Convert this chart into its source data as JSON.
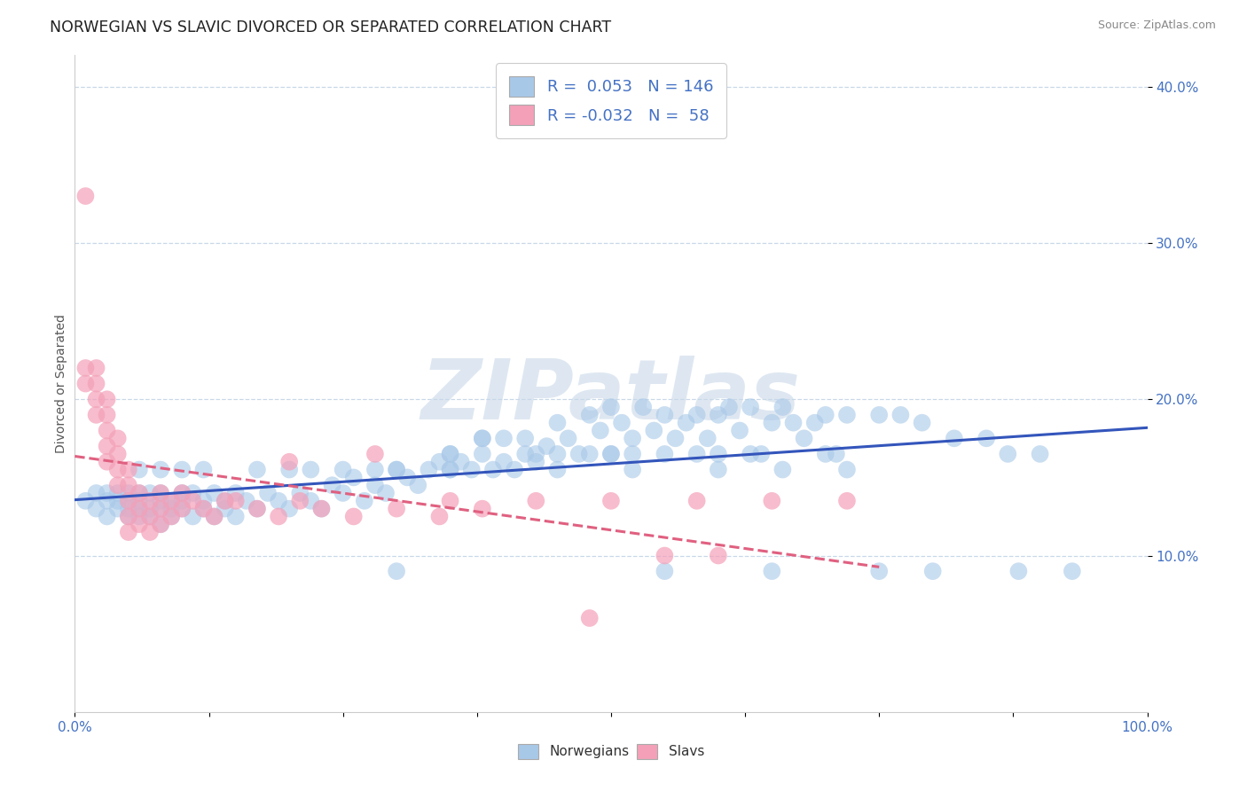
{
  "title": "NORWEGIAN VS SLAVIC DIVORCED OR SEPARATED CORRELATION CHART",
  "source_text": "Source: ZipAtlas.com",
  "ylabel": "Divorced or Separated",
  "xlim": [
    0.0,
    1.0
  ],
  "ylim": [
    0.0,
    0.42
  ],
  "yticks": [
    0.1,
    0.2,
    0.3,
    0.4
  ],
  "ytick_labels": [
    "10.0%",
    "20.0%",
    "30.0%",
    "40.0%"
  ],
  "xtick_labels": [
    "0.0%",
    "100.0%"
  ],
  "watermark": "ZIPatlas",
  "norwegian_color": "#a8c8e8",
  "slav_color": "#f4a0b8",
  "norwegian_line_color": "#3355bb",
  "slav_line_color": "#e06080",
  "background_color": "#ffffff",
  "grid_color": "#c8d8e8",
  "norwegians_x": [
    0.01,
    0.02,
    0.02,
    0.03,
    0.03,
    0.03,
    0.04,
    0.04,
    0.04,
    0.05,
    0.05,
    0.05,
    0.05,
    0.06,
    0.06,
    0.06,
    0.06,
    0.07,
    0.07,
    0.07,
    0.08,
    0.08,
    0.08,
    0.08,
    0.09,
    0.09,
    0.09,
    0.1,
    0.1,
    0.1,
    0.11,
    0.11,
    0.12,
    0.12,
    0.13,
    0.13,
    0.14,
    0.14,
    0.15,
    0.15,
    0.16,
    0.17,
    0.18,
    0.19,
    0.2,
    0.21,
    0.22,
    0.23,
    0.24,
    0.25,
    0.26,
    0.27,
    0.28,
    0.29,
    0.3,
    0.31,
    0.32,
    0.33,
    0.34,
    0.35,
    0.36,
    0.37,
    0.38,
    0.39,
    0.4,
    0.41,
    0.42,
    0.43,
    0.44,
    0.45,
    0.46,
    0.47,
    0.48,
    0.49,
    0.5,
    0.51,
    0.52,
    0.53,
    0.54,
    0.55,
    0.56,
    0.57,
    0.58,
    0.59,
    0.6,
    0.61,
    0.62,
    0.63,
    0.64,
    0.65,
    0.66,
    0.67,
    0.68,
    0.69,
    0.7,
    0.72,
    0.75,
    0.77,
    0.79,
    0.82,
    0.85,
    0.87,
    0.9,
    0.38,
    0.42,
    0.48,
    0.52,
    0.55,
    0.4,
    0.5,
    0.6,
    0.7,
    0.38,
    0.35,
    0.45,
    0.35,
    0.3,
    0.55,
    0.65,
    0.75,
    0.8,
    0.88,
    0.93,
    0.45,
    0.52,
    0.6,
    0.66,
    0.72,
    0.3,
    0.28,
    0.25,
    0.22,
    0.2,
    0.17,
    0.12,
    0.1,
    0.08,
    0.06,
    0.5,
    0.35,
    0.43,
    0.58,
    0.63,
    0.71
  ],
  "norwegians_y": [
    0.135,
    0.14,
    0.13,
    0.135,
    0.14,
    0.125,
    0.13,
    0.14,
    0.135,
    0.13,
    0.125,
    0.14,
    0.135,
    0.13,
    0.14,
    0.125,
    0.135,
    0.13,
    0.14,
    0.125,
    0.135,
    0.13,
    0.14,
    0.12,
    0.135,
    0.13,
    0.125,
    0.14,
    0.135,
    0.13,
    0.125,
    0.14,
    0.135,
    0.13,
    0.14,
    0.125,
    0.135,
    0.13,
    0.14,
    0.125,
    0.135,
    0.13,
    0.14,
    0.135,
    0.13,
    0.14,
    0.135,
    0.13,
    0.145,
    0.14,
    0.15,
    0.135,
    0.145,
    0.14,
    0.155,
    0.15,
    0.145,
    0.155,
    0.16,
    0.155,
    0.16,
    0.155,
    0.165,
    0.155,
    0.16,
    0.155,
    0.165,
    0.16,
    0.17,
    0.185,
    0.175,
    0.165,
    0.19,
    0.18,
    0.195,
    0.185,
    0.175,
    0.195,
    0.18,
    0.19,
    0.175,
    0.185,
    0.19,
    0.175,
    0.19,
    0.195,
    0.18,
    0.195,
    0.165,
    0.185,
    0.195,
    0.185,
    0.175,
    0.185,
    0.19,
    0.19,
    0.19,
    0.19,
    0.185,
    0.175,
    0.175,
    0.165,
    0.165,
    0.175,
    0.175,
    0.165,
    0.165,
    0.165,
    0.175,
    0.165,
    0.165,
    0.165,
    0.175,
    0.165,
    0.165,
    0.155,
    0.09,
    0.09,
    0.09,
    0.09,
    0.09,
    0.09,
    0.09,
    0.155,
    0.155,
    0.155,
    0.155,
    0.155,
    0.155,
    0.155,
    0.155,
    0.155,
    0.155,
    0.155,
    0.155,
    0.155,
    0.155,
    0.155,
    0.165,
    0.165,
    0.165,
    0.165,
    0.165,
    0.165
  ],
  "slavs_x": [
    0.01,
    0.01,
    0.01,
    0.02,
    0.02,
    0.02,
    0.02,
    0.03,
    0.03,
    0.03,
    0.03,
    0.03,
    0.04,
    0.04,
    0.04,
    0.04,
    0.05,
    0.05,
    0.05,
    0.05,
    0.05,
    0.06,
    0.06,
    0.06,
    0.07,
    0.07,
    0.07,
    0.08,
    0.08,
    0.08,
    0.09,
    0.09,
    0.1,
    0.1,
    0.11,
    0.12,
    0.13,
    0.14,
    0.15,
    0.17,
    0.19,
    0.21,
    0.23,
    0.26,
    0.3,
    0.34,
    0.38,
    0.2,
    0.28,
    0.35,
    0.43,
    0.5,
    0.58,
    0.65,
    0.72,
    0.55,
    0.6,
    0.48
  ],
  "slavs_y": [
    0.33,
    0.22,
    0.21,
    0.22,
    0.21,
    0.2,
    0.19,
    0.2,
    0.19,
    0.18,
    0.17,
    0.16,
    0.175,
    0.165,
    0.155,
    0.145,
    0.155,
    0.145,
    0.135,
    0.125,
    0.115,
    0.14,
    0.13,
    0.12,
    0.135,
    0.125,
    0.115,
    0.14,
    0.13,
    0.12,
    0.135,
    0.125,
    0.14,
    0.13,
    0.135,
    0.13,
    0.125,
    0.135,
    0.135,
    0.13,
    0.125,
    0.135,
    0.13,
    0.125,
    0.13,
    0.125,
    0.13,
    0.16,
    0.165,
    0.135,
    0.135,
    0.135,
    0.135,
    0.135,
    0.135,
    0.1,
    0.1,
    0.06
  ]
}
